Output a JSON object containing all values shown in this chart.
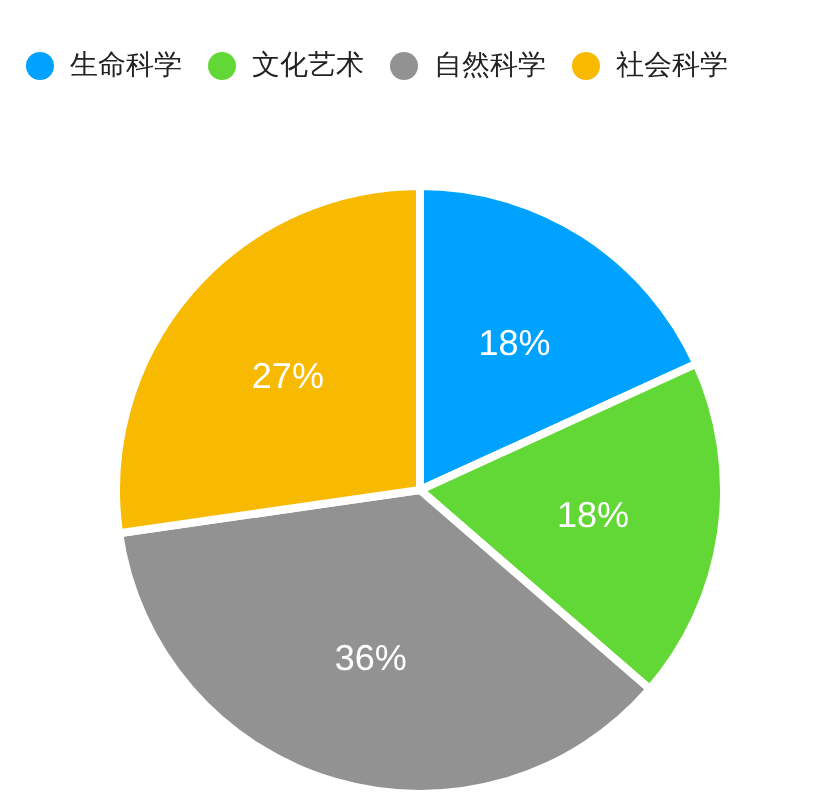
{
  "chart_data": {
    "type": "pie",
    "categories": [
      "生命科学",
      "文化艺术",
      "自然科学",
      "社会科学"
    ],
    "values": [
      18,
      18,
      36,
      27
    ],
    "colors": [
      "#00a2ff",
      "#61d836",
      "#929292",
      "#f8ba00"
    ],
    "value_labels": [
      "18%",
      "18%",
      "36%",
      "27%"
    ],
    "legend": "top left"
  }
}
